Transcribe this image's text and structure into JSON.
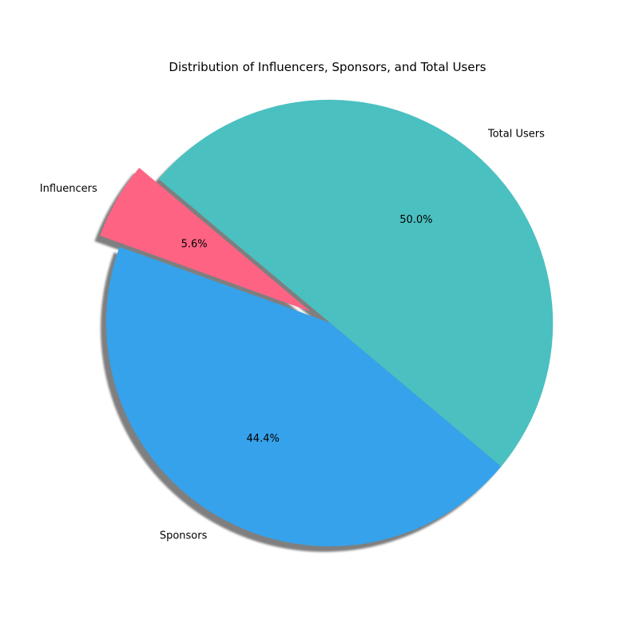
{
  "chart_data": {
    "type": "pie",
    "title": "Distribution of Influencers, Sponsors, and Total Users",
    "start_angle_deg": 140,
    "direction": "counterclockwise",
    "shadow": true,
    "slices": [
      {
        "label": "Influencers",
        "value": 5.6,
        "pct_label": "5.6%",
        "color": "#ff6384",
        "explode": 0.1
      },
      {
        "label": "Sponsors",
        "value": 44.4,
        "pct_label": "44.4%",
        "color": "#36a2eb",
        "explode": 0
      },
      {
        "label": "Total Users",
        "value": 50.0,
        "pct_label": "50.0%",
        "color": "#4bc0c0",
        "explode": 0
      }
    ]
  }
}
